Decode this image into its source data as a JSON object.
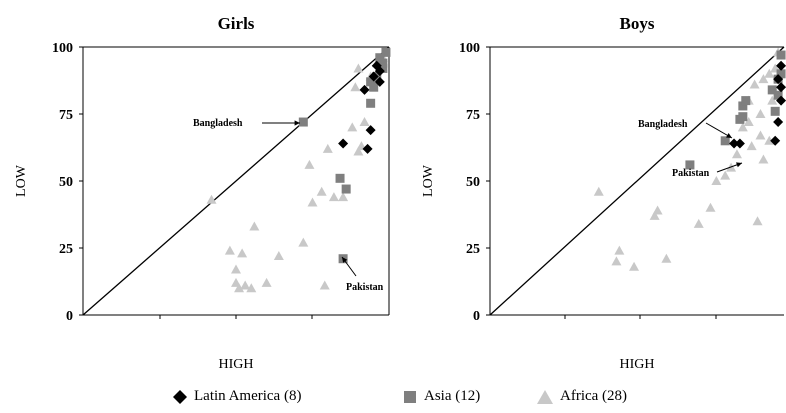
{
  "chart_data": [
    {
      "type": "scatter",
      "title": "Girls",
      "xlabel": "HIGH",
      "ylabel": "LOW",
      "xlim": [
        0,
        100
      ],
      "ylim": [
        0,
        100
      ],
      "yticks": [
        "0",
        "25",
        "50",
        "75",
        "100"
      ],
      "reference_line": "y = x",
      "series": [
        {
          "name": "Latin America (8)",
          "color": "#000000",
          "marker": "diamond",
          "points": [
            [
              85,
              64
            ],
            [
              94,
              69
            ],
            [
              92,
              84
            ],
            [
              97,
              87
            ],
            [
              95,
              89
            ],
            [
              97,
              91
            ],
            [
              96,
              93
            ],
            [
              93,
              62
            ]
          ]
        },
        {
          "name": "Asia (12)",
          "color": "#7f7f7f",
          "marker": "square",
          "points": [
            [
              72,
              72
            ],
            [
              84,
              51
            ],
            [
              86,
              47
            ],
            [
              85,
              21
            ],
            [
              94,
              79
            ],
            [
              95,
              85
            ],
            [
              96,
              89
            ],
            [
              98,
              92
            ],
            [
              99,
              98
            ],
            [
              94,
              87
            ],
            [
              97,
              96
            ],
            [
              98,
              94
            ]
          ]
        },
        {
          "name": "Africa (28)",
          "color": "#c8c8c8",
          "marker": "triangle",
          "points": [
            [
              42,
              43
            ],
            [
              56,
              33
            ],
            [
              48,
              24
            ],
            [
              50,
              17
            ],
            [
              52,
              23
            ],
            [
              60,
              12
            ],
            [
              64,
              22
            ],
            [
              72,
              27
            ],
            [
              75,
              42
            ],
            [
              78,
              46
            ],
            [
              74,
              56
            ],
            [
              80,
              62
            ],
            [
              82,
              44
            ],
            [
              85,
              44
            ],
            [
              88,
              70
            ],
            [
              90,
              61
            ],
            [
              91,
              63
            ],
            [
              92,
              72
            ],
            [
              89,
              85
            ],
            [
              90,
              92
            ],
            [
              94,
              89
            ],
            [
              96,
              94
            ],
            [
              98,
              96
            ],
            [
              51,
              10
            ],
            [
              53,
              11
            ],
            [
              55,
              10
            ],
            [
              50,
              12
            ],
            [
              79,
              11
            ]
          ]
        }
      ],
      "annotations": [
        {
          "text": "Bangladesh",
          "x": 72,
          "y": 72
        },
        {
          "text": "Pakistan",
          "x": 85,
          "y": 21
        }
      ]
    },
    {
      "type": "scatter",
      "title": "Boys",
      "xlabel": "HIGH",
      "ylabel": "LOW",
      "xlim": [
        0,
        100
      ],
      "ylim": [
        0,
        100
      ],
      "yticks": [
        "0",
        "25",
        "50",
        "75",
        "100"
      ],
      "reference_line": "y = x",
      "series": [
        {
          "name": "Latin America (8)",
          "color": "#000000",
          "marker": "diamond",
          "points": [
            [
              83,
              64
            ],
            [
              85,
              64
            ],
            [
              97,
              65
            ],
            [
              98,
              72
            ],
            [
              99,
              80
            ],
            [
              99,
              85
            ],
            [
              98,
              88
            ],
            [
              99,
              93
            ]
          ]
        },
        {
          "name": "Asia (12)",
          "color": "#7f7f7f",
          "marker": "square",
          "points": [
            [
              80,
              65
            ],
            [
              86,
              78
            ],
            [
              86,
              74
            ],
            [
              87,
              80
            ],
            [
              96,
              84
            ],
            [
              98,
              82
            ],
            [
              98,
              88
            ],
            [
              99,
              90
            ],
            [
              99,
              97
            ],
            [
              97,
              76
            ],
            [
              85,
              73
            ],
            [
              68,
              56
            ]
          ]
        },
        {
          "name": "Africa (28)",
          "color": "#c8c8c8",
          "marker": "triangle",
          "points": [
            [
              37,
              46
            ],
            [
              43,
              20
            ],
            [
              44,
              24
            ],
            [
              49,
              18
            ],
            [
              56,
              37
            ],
            [
              57,
              39
            ],
            [
              60,
              21
            ],
            [
              71,
              34
            ],
            [
              75,
              40
            ],
            [
              77,
              50
            ],
            [
              82,
              55
            ],
            [
              80,
              52
            ],
            [
              84,
              60
            ],
            [
              86,
              70
            ],
            [
              88,
              72
            ],
            [
              88,
              80
            ],
            [
              90,
              86
            ],
            [
              92,
              75
            ],
            [
              93,
              88
            ],
            [
              95,
              90
            ],
            [
              97,
              92
            ],
            [
              91,
              35
            ],
            [
              93,
              58
            ],
            [
              95,
              65
            ],
            [
              98,
              98
            ],
            [
              89,
              63
            ],
            [
              92,
              67
            ],
            [
              96,
              80
            ]
          ]
        }
      ],
      "annotations": [
        {
          "text": "Bangladesh",
          "x": 80,
          "y": 65
        },
        {
          "text": "Pakistan",
          "x": 68,
          "y": 56
        }
      ]
    }
  ],
  "legend": [
    {
      "label": "Latin America (8)",
      "marker": "diamond",
      "color": "#000000"
    },
    {
      "label": "Asia (12)",
      "marker": "square",
      "color": "#7f7f7f"
    },
    {
      "label": "Africa (28)",
      "marker": "triangle",
      "color": "#c8c8c8"
    }
  ]
}
